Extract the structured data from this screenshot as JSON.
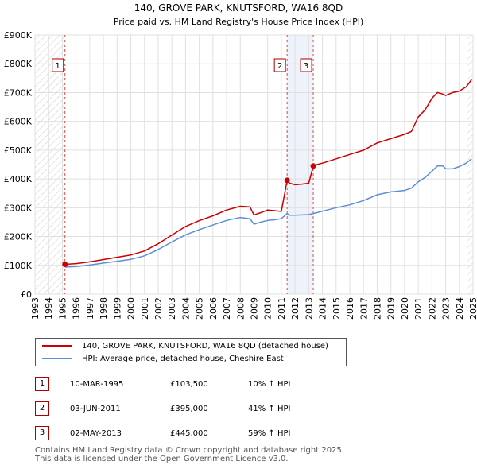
{
  "chart_data": {
    "type": "line",
    "title": "140, GROVE PARK, KNUTSFORD, WA16 8QD",
    "subtitle": "Price paid vs. HM Land Registry's House Price Index (HPI)",
    "xlabel": "",
    "ylabel": "",
    "xlim": [
      1993,
      2025
    ],
    "ylim": [
      0,
      900000
    ],
    "x_ticks": [
      "1993",
      "1994",
      "1995",
      "1996",
      "1997",
      "1998",
      "1999",
      "2000",
      "2001",
      "2002",
      "2003",
      "2004",
      "2005",
      "2006",
      "2007",
      "2008",
      "2009",
      "2010",
      "2011",
      "2012",
      "2013",
      "2014",
      "2015",
      "2016",
      "2017",
      "2018",
      "2019",
      "2020",
      "2021",
      "2022",
      "2023",
      "2024",
      "2025"
    ],
    "y_ticks": [
      {
        "value": 0,
        "label": "£0"
      },
      {
        "value": 100000,
        "label": "£100K"
      },
      {
        "value": 200000,
        "label": "£200K"
      },
      {
        "value": 300000,
        "label": "£300K"
      },
      {
        "value": 400000,
        "label": "£400K"
      },
      {
        "value": 500000,
        "label": "£500K"
      },
      {
        "value": 600000,
        "label": "£600K"
      },
      {
        "value": 700000,
        "label": "£700K"
      },
      {
        "value": 800000,
        "label": "£800K"
      },
      {
        "value": 900000,
        "label": "£900K"
      }
    ],
    "hatched_ranges": [
      [
        1993,
        1995.2
      ],
      [
        2024.6,
        2025
      ]
    ],
    "series": [
      {
        "name": "140, GROVE PARK, KNUTSFORD, WA16 8QD (detached house)",
        "color": "#cc0000",
        "x": [
          1995.19,
          1996,
          1997,
          1998,
          1999,
          2000,
          2001,
          2002,
          2003,
          2004,
          2005,
          2006,
          2007,
          2008,
          2008.7,
          2009,
          2009.5,
          2010,
          2010.5,
          2011.0,
          2011.42,
          2011.6,
          2012,
          2012.5,
          2013.0,
          2013.33,
          2013.6,
          2014,
          2015,
          2016,
          2017,
          2018,
          2019,
          2020,
          2020.5,
          2021,
          2021.5,
          2022,
          2022.4,
          2022.8,
          2023,
          2023.5,
          2024,
          2024.5,
          2024.9
        ],
        "values": [
          103500,
          106000,
          112000,
          120000,
          128000,
          136000,
          150000,
          175000,
          205000,
          235000,
          255000,
          272000,
          292000,
          305000,
          303000,
          275000,
          283000,
          292000,
          290000,
          287000,
          395000,
          385000,
          380000,
          382000,
          385000,
          445000,
          450000,
          455000,
          470000,
          485000,
          500000,
          525000,
          540000,
          555000,
          565000,
          615000,
          640000,
          680000,
          700000,
          695000,
          690000,
          700000,
          705000,
          720000,
          745000
        ]
      },
      {
        "name": "HPI: Average price, detached house, Cheshire East",
        "color": "#5b8fd6",
        "x": [
          1995.19,
          1996,
          1997,
          1998,
          1999,
          2000,
          2001,
          2002,
          2003,
          2004,
          2005,
          2006,
          2007,
          2008,
          2008.7,
          2009,
          2009.5,
          2010,
          2010.5,
          2011.0,
          2011.42,
          2011.6,
          2012,
          2012.5,
          2013.0,
          2013.33,
          2013.6,
          2014,
          2015,
          2016,
          2017,
          2018,
          2019,
          2020,
          2020.5,
          2021,
          2021.5,
          2022,
          2022.4,
          2022.8,
          2023,
          2023.5,
          2024,
          2024.5,
          2024.9
        ],
        "values": [
          94000,
          96000,
          101000,
          108000,
          114000,
          121000,
          133000,
          155000,
          181000,
          206000,
          224000,
          240000,
          256000,
          266000,
          262000,
          243000,
          250000,
          256000,
          258000,
          262000,
          280000,
          274000,
          274000,
          275000,
          276000,
          280000,
          283000,
          288000,
          300000,
          310000,
          325000,
          345000,
          355000,
          360000,
          368000,
          390000,
          405000,
          427000,
          445000,
          445000,
          435000,
          435000,
          443000,
          455000,
          470000
        ]
      }
    ],
    "markers": [
      {
        "label": "1",
        "x": 1995.19,
        "value": 103500
      },
      {
        "label": "2",
        "x": 2011.42,
        "value": 395000
      },
      {
        "label": "3",
        "x": 2013.33,
        "value": 445000
      }
    ],
    "shaded_span": [
      2011.42,
      2013.33
    ]
  },
  "legend": {
    "property": "140, GROVE PARK, KNUTSFORD, WA16 8QD (detached house)",
    "hpi": "HPI: Average price, detached house, Cheshire East"
  },
  "transactions": [
    {
      "num": "1",
      "date": "10-MAR-1995",
      "price": "£103,500",
      "hpi": "10% ↑ HPI"
    },
    {
      "num": "2",
      "date": "03-JUN-2011",
      "price": "£395,000",
      "hpi": "41% ↑ HPI"
    },
    {
      "num": "3",
      "date": "02-MAY-2013",
      "price": "£445,000",
      "hpi": "59% ↑ HPI"
    }
  ],
  "footer": {
    "line1": "Contains HM Land Registry data © Crown copyright and database right 2025.",
    "line2": "This data is licensed under the Open Government Licence v3.0."
  },
  "colors": {
    "property": "#cc0000",
    "hpi": "#5b8fd6",
    "grid": "#e0e0e0",
    "marker_border": "#aa0000",
    "shade": "#dde6f5"
  }
}
